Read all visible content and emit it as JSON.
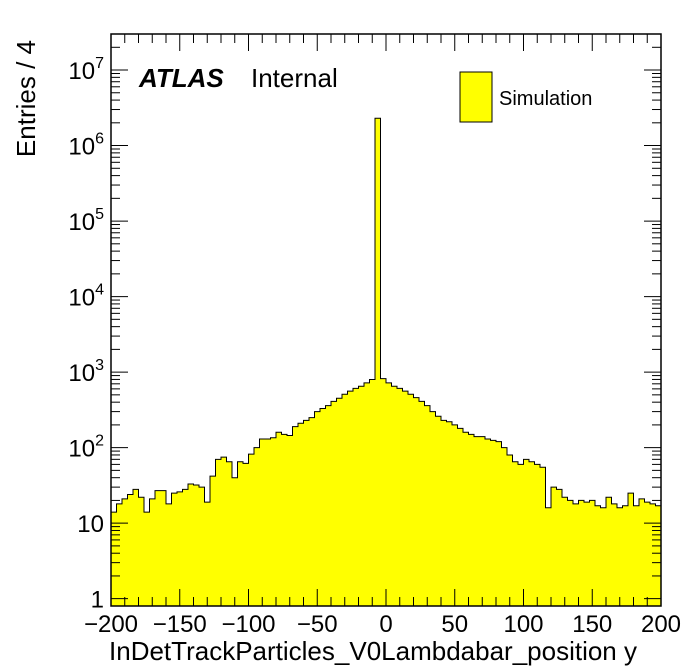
{
  "chart_data": {
    "type": "bar",
    "style": "histogram",
    "fill_color": "#ffff00",
    "edge_color": "#000000",
    "xlabel": "InDetTrackParticles_V0Lambdabar_position y",
    "ylabel": "Entries / 4",
    "xlim": [
      -200,
      200
    ],
    "ylim": [
      0.8,
      30000000
    ],
    "y_scale": "log",
    "bin_width": 4,
    "x_ticks": [
      "−200",
      "−150",
      "−100",
      "−50",
      "0",
      "50",
      "100",
      "150",
      "200"
    ],
    "x_tick_values": [
      -200,
      -150,
      -100,
      -50,
      0,
      50,
      100,
      150,
      200
    ],
    "y_ticks": [
      {
        "value": 1,
        "base": "1",
        "exp": ""
      },
      {
        "value": 10,
        "base": "10",
        "exp": ""
      },
      {
        "value": 100,
        "base": "10",
        "exp": "2"
      },
      {
        "value": 1000,
        "base": "10",
        "exp": "3"
      },
      {
        "value": 10000,
        "base": "10",
        "exp": "4"
      },
      {
        "value": 100000,
        "base": "10",
        "exp": "5"
      },
      {
        "value": 1000000,
        "base": "10",
        "exp": "6"
      },
      {
        "value": 10000000,
        "base": "10",
        "exp": "7"
      }
    ],
    "atlas_label": "ATLAS",
    "atlas_sublabel": "Internal",
    "legend": {
      "label": "Simulation",
      "position": "top-right"
    },
    "bin_edges_start": -200,
    "values": [
      14,
      18,
      21,
      24,
      28,
      22,
      14,
      21,
      27,
      27,
      18,
      25,
      26,
      28,
      33,
      32,
      30,
      19,
      42,
      70,
      75,
      65,
      40,
      65,
      62,
      82,
      100,
      130,
      130,
      135,
      160,
      150,
      145,
      190,
      210,
      230,
      250,
      300,
      330,
      360,
      410,
      450,
      510,
      560,
      610,
      650,
      720,
      800,
      2300000,
      820,
      720,
      650,
      610,
      560,
      510,
      460,
      410,
      360,
      300,
      260,
      230,
      220,
      200,
      180,
      160,
      150,
      140,
      140,
      130,
      125,
      120,
      100,
      80,
      65,
      60,
      70,
      65,
      60,
      55,
      16,
      30,
      28,
      22,
      20,
      18,
      20,
      19,
      20,
      17,
      16,
      22,
      18,
      16,
      17,
      25,
      17,
      21,
      19,
      18,
      17
    ]
  }
}
